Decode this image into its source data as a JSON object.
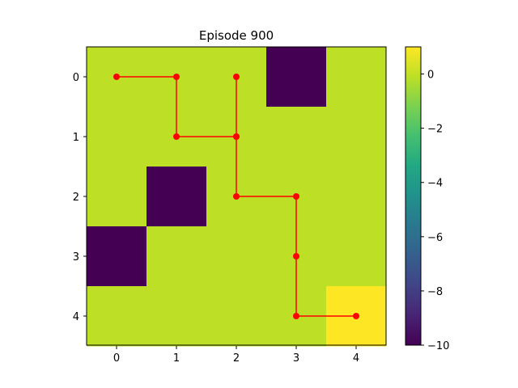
{
  "chart_data": {
    "type": "heatmap",
    "title": "Episode 900",
    "xlabel": "",
    "ylabel": "",
    "x_ticks": [
      "0",
      "1",
      "2",
      "3",
      "4"
    ],
    "y_ticks": [
      "0",
      "1",
      "2",
      "3",
      "4"
    ],
    "grid": false,
    "colormap": "viridis",
    "values": [
      [
        -0.1,
        -0.1,
        -0.1,
        -10,
        -0.1
      ],
      [
        -0.1,
        -0.1,
        -0.1,
        -0.1,
        -0.1
      ],
      [
        -0.1,
        -10,
        -0.1,
        -0.1,
        -0.1
      ],
      [
        -10,
        -0.1,
        -0.1,
        -0.1,
        -0.1
      ],
      [
        -0.1,
        -0.1,
        -0.1,
        -0.1,
        1
      ]
    ],
    "colorbar": {
      "range": [
        -10,
        1
      ],
      "ticks": [
        0,
        -2,
        -4,
        -6,
        -8,
        -10
      ],
      "tick_labels": [
        "0",
        "−2",
        "−4",
        "−6",
        "−8",
        "−10"
      ]
    },
    "path": {
      "color": "#ff0000",
      "points": [
        {
          "x": 0,
          "y": 0
        },
        {
          "x": 1,
          "y": 0
        },
        {
          "x": 1,
          "y": 1
        },
        {
          "x": 2,
          "y": 1
        },
        {
          "x": 2,
          "y": 0
        },
        {
          "x": 2,
          "y": 1
        },
        {
          "x": 2,
          "y": 2
        },
        {
          "x": 3,
          "y": 2
        },
        {
          "x": 3,
          "y": 3
        },
        {
          "x": 3,
          "y": 4
        },
        {
          "x": 4,
          "y": 4
        }
      ]
    }
  }
}
